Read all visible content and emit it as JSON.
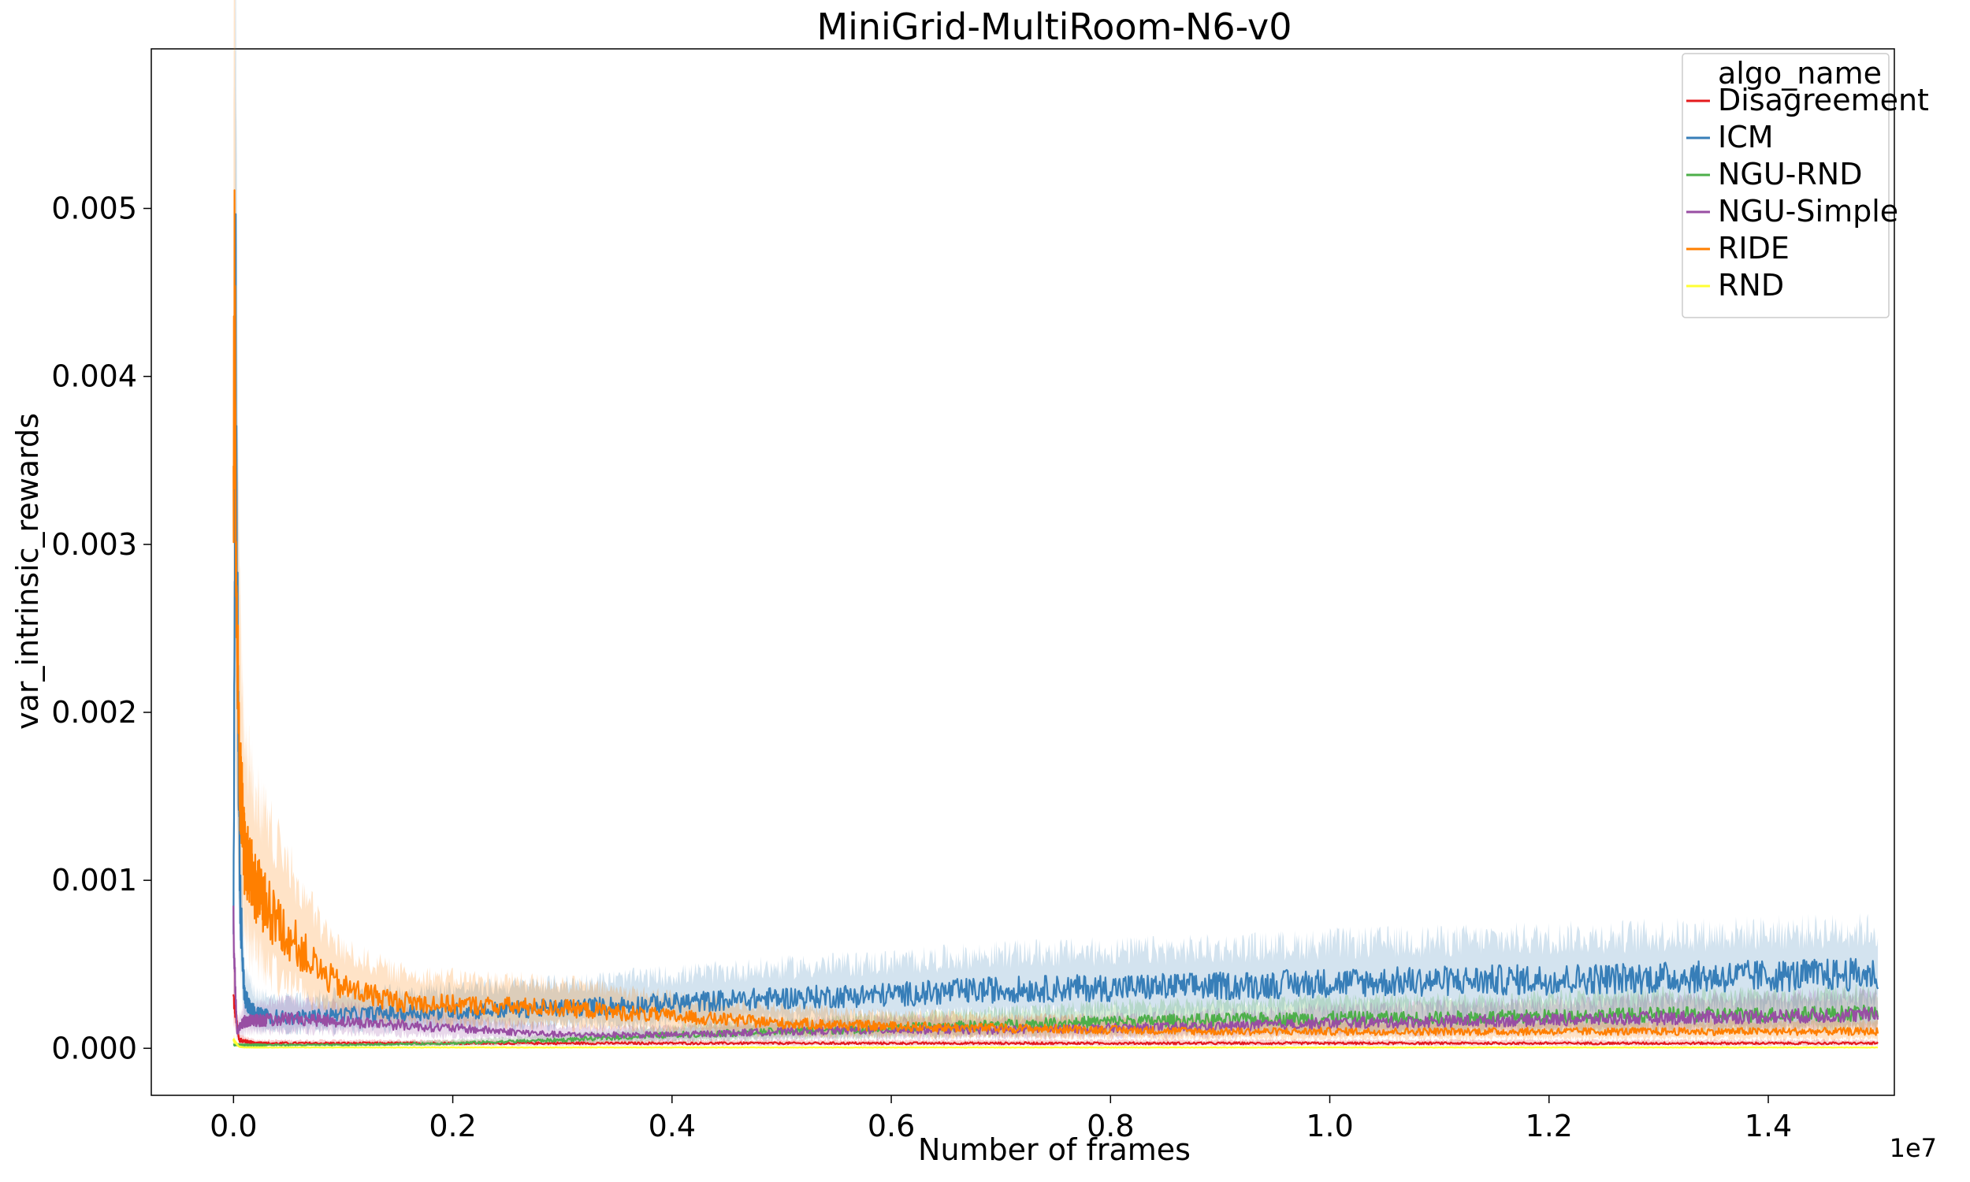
{
  "chart_data": {
    "type": "line",
    "title": "MiniGrid-MultiRoom-N6-v0",
    "xlabel": "Number of frames",
    "ylabel": "var_intrinsic_rewards",
    "x_offset_label": "1e7",
    "xlim": [
      -0.075,
      1.515
    ],
    "ylim": [
      -0.00028,
      0.00595
    ],
    "x_ticks": [
      0.0,
      0.2,
      0.4,
      0.6,
      0.8,
      1.0,
      1.2,
      1.4
    ],
    "x_tick_labels": [
      "0.0",
      "0.2",
      "0.4",
      "0.6",
      "0.8",
      "1.0",
      "1.2",
      "1.4"
    ],
    "y_ticks": [
      0.0,
      0.001,
      0.002,
      0.003,
      0.004,
      0.005
    ],
    "y_tick_labels": [
      "0.000",
      "0.001",
      "0.002",
      "0.003",
      "0.004",
      "0.005"
    ],
    "grid": false,
    "legend_title": "algo_name",
    "legend_position": "top-right",
    "series": [
      {
        "name": "Disagreement",
        "color": "#e41a1c",
        "x": [
          0.0,
          0.005,
          0.02,
          0.1,
          0.2,
          0.4,
          0.6,
          0.8,
          1.0,
          1.2,
          1.4,
          1.5
        ],
        "values": [
          0.0003,
          5e-05,
          3e-05,
          3e-05,
          3e-05,
          3e-05,
          3e-05,
          3e-05,
          3e-05,
          3e-05,
          3e-05,
          3e-05
        ]
      },
      {
        "name": "ICM",
        "color": "#377eb8",
        "x": [
          0.0,
          0.002,
          0.004,
          0.006,
          0.01,
          0.02,
          0.05,
          0.1,
          0.2,
          0.3,
          0.4,
          0.5,
          0.6,
          0.7,
          0.8,
          0.9,
          1.0,
          1.1,
          1.2,
          1.3,
          1.4,
          1.5
        ],
        "values": [
          0.0007,
          0.0043,
          0.0021,
          0.0009,
          0.0003,
          0.0002,
          0.00018,
          0.0002,
          0.00022,
          0.00024,
          0.00027,
          0.0003,
          0.00032,
          0.00035,
          0.00036,
          0.00037,
          0.00039,
          0.0004,
          0.00041,
          0.00042,
          0.00043,
          0.00044
        ]
      },
      {
        "name": "NGU-RND",
        "color": "#4daf4a",
        "x": [
          0.0,
          0.01,
          0.05,
          0.1,
          0.2,
          0.3,
          0.4,
          0.5,
          0.6,
          0.7,
          0.8,
          0.9,
          1.0,
          1.1,
          1.2,
          1.3,
          1.4,
          1.5
        ],
        "values": [
          2e-05,
          2e-05,
          2e-05,
          2e-05,
          3e-05,
          5e-05,
          8e-05,
          0.0001,
          0.00012,
          0.00014,
          0.00016,
          0.00017,
          0.00018,
          0.00018,
          0.00019,
          0.0002,
          0.0002,
          0.00021
        ]
      },
      {
        "name": "NGU-Simple",
        "color": "#984ea3",
        "x": [
          0.0,
          0.003,
          0.01,
          0.05,
          0.1,
          0.2,
          0.3,
          0.4,
          0.5,
          0.6,
          0.7,
          0.8,
          0.9,
          1.0,
          1.1,
          1.2,
          1.3,
          1.4,
          1.5
        ],
        "values": [
          0.0007,
          0.0001,
          0.00016,
          0.00018,
          0.00016,
          0.00012,
          8e-05,
          8e-05,
          0.0001,
          0.00011,
          0.00011,
          0.00012,
          0.00013,
          0.00015,
          0.00016,
          0.00017,
          0.00018,
          0.00019,
          0.0002
        ]
      },
      {
        "name": "RIDE",
        "color": "#ff7f00",
        "x": [
          0.0,
          0.001,
          0.002,
          0.004,
          0.006,
          0.01,
          0.02,
          0.04,
          0.06,
          0.08,
          0.1,
          0.15,
          0.2,
          0.3,
          0.4,
          0.5,
          0.6,
          0.7,
          0.8,
          0.9,
          1.0,
          1.1,
          1.2,
          1.3,
          1.4,
          1.5
        ],
        "values": [
          0.0035,
          0.0047,
          0.0031,
          0.0021,
          0.0016,
          0.00115,
          0.00095,
          0.00075,
          0.0006,
          0.00045,
          0.00036,
          0.00028,
          0.00026,
          0.00024,
          0.00019,
          0.00015,
          0.00013,
          0.00012,
          0.00011,
          0.0001,
          0.0001,
          0.0001,
          0.0001,
          0.0001,
          0.0001,
          0.0001
        ]
      },
      {
        "name": "RND",
        "color": "#ffff33",
        "x": [
          0.0,
          0.005,
          0.01,
          0.1,
          0.5,
          1.0,
          1.5
        ],
        "values": [
          5e-05,
          1e-05,
          5e-06,
          5e-06,
          5e-06,
          5e-06,
          5e-06
        ]
      }
    ]
  }
}
